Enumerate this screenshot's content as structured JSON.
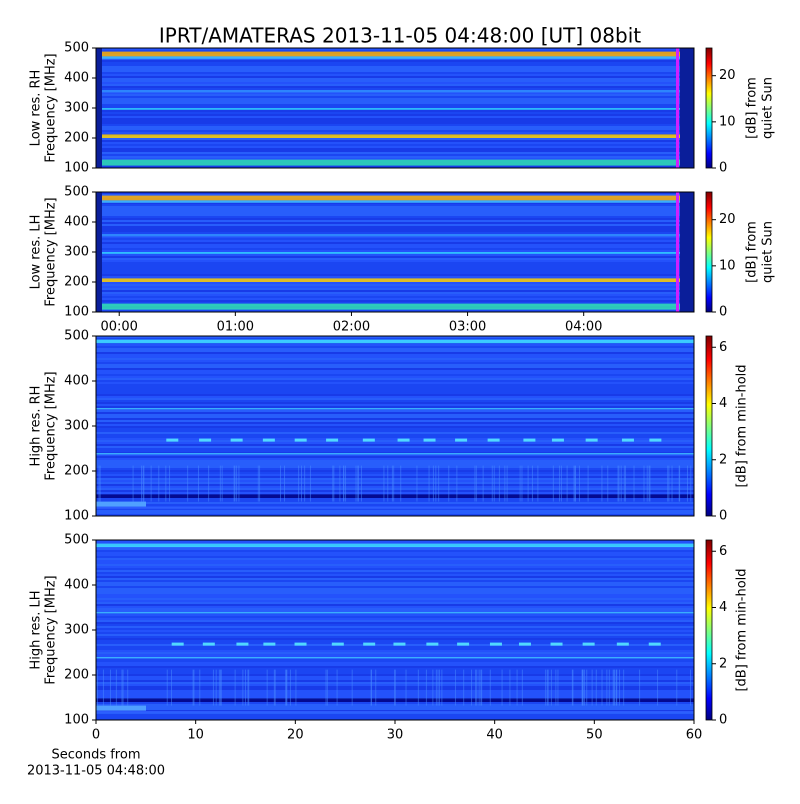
{
  "chart_data": [
    {
      "type": "spectrogram",
      "title": "IPRT/AMATERAS 2013-11-05 04:48:00 [UT]   08bit",
      "ylabel": [
        "Low res. RH",
        "Frequency [MHz]"
      ],
      "ylim": [
        100,
        500
      ],
      "yticks": [
        100,
        200,
        300,
        400,
        500
      ],
      "xlim": [
        -0.2,
        4.95
      ],
      "colorbar_label": [
        "[dB] from",
        "quiet Sun"
      ],
      "clim": [
        0,
        26
      ],
      "cticks": [
        0,
        10,
        20
      ]
    },
    {
      "type": "spectrogram",
      "ylabel": [
        "Low res. LH",
        "Frequency [MHz]"
      ],
      "ylim": [
        100,
        500
      ],
      "yticks": [
        100,
        200,
        300,
        400,
        500
      ],
      "xlim": [
        -0.2,
        4.95
      ],
      "xticks": [
        {
          "value": 0,
          "label": "00:00"
        },
        {
          "value": 1,
          "label": "01:00"
        },
        {
          "value": 2,
          "label": "02:00"
        },
        {
          "value": 3,
          "label": "03:00"
        },
        {
          "value": 4,
          "label": "04:00"
        }
      ],
      "colorbar_label": [
        "[dB] from",
        "quiet Sun"
      ],
      "clim": [
        0,
        26
      ],
      "cticks": [
        0,
        10,
        20
      ]
    },
    {
      "type": "spectrogram",
      "ylabel": [
        "High res. RH",
        "Frequency [MHz]"
      ],
      "ylim": [
        100,
        500
      ],
      "yticks": [
        100,
        200,
        300,
        400,
        500
      ],
      "xlim": [
        0,
        60
      ],
      "colorbar_label": [
        "[dB] from min-hold"
      ],
      "clim": [
        0,
        6.4
      ],
      "cticks": [
        0,
        2,
        4,
        6
      ]
    },
    {
      "type": "spectrogram",
      "ylabel": [
        "High res. LH",
        "Frequency [MHz]"
      ],
      "ylim": [
        100,
        500
      ],
      "yticks": [
        100,
        200,
        300,
        400,
        500
      ],
      "xlim": [
        0,
        60
      ],
      "xticks": [
        0,
        10,
        20,
        30,
        40,
        50,
        60
      ],
      "xlabel": [
        "Seconds from",
        "2013-11-05 04:48:00"
      ],
      "colorbar_label": [
        "[dB] from min-hold"
      ],
      "clim": [
        0,
        6.4
      ],
      "cticks": [
        0,
        2,
        4,
        6
      ]
    }
  ]
}
